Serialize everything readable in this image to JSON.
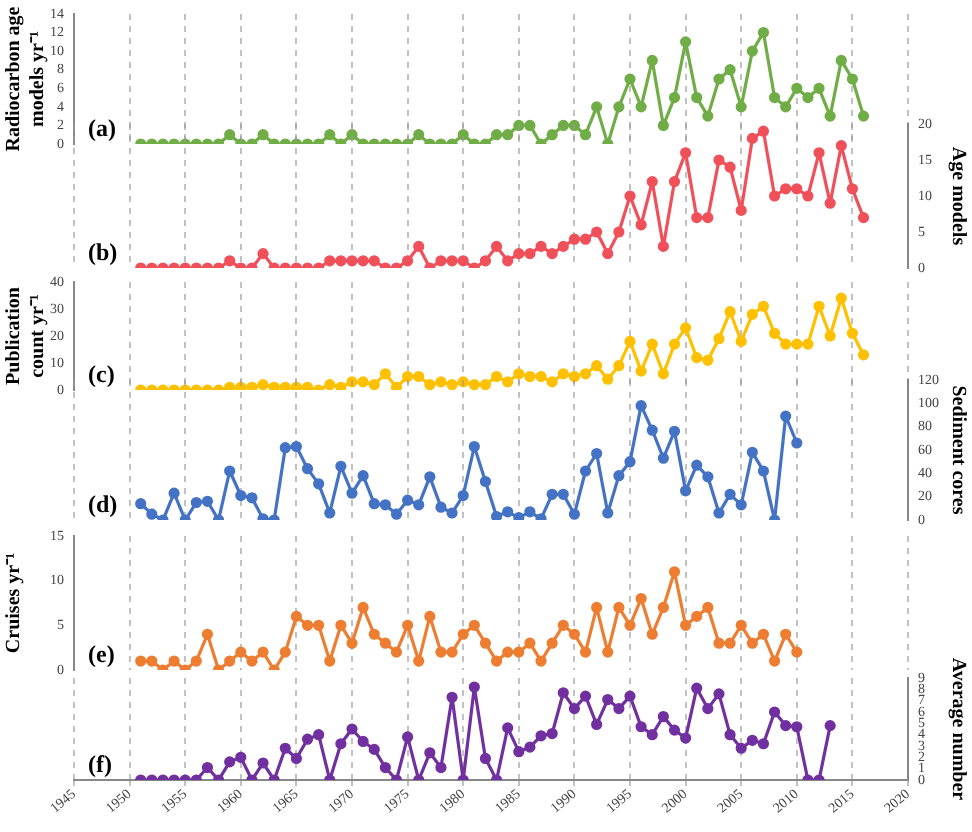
{
  "chart_data": [
    {
      "type": "line",
      "ylabel": "Radiocarbon age models yr⁻¹",
      "annotations": [
        "(a)"
      ],
      "grid": "x",
      "marker": "circle",
      "tick_labels": "y",
      "xlim": [
        1945,
        2020
      ],
      "xticks": [
        1945,
        1950,
        1955,
        1960,
        1965,
        1970,
        1975,
        1980,
        1985,
        1990,
        1995,
        2000,
        2005,
        2010,
        2015,
        2020
      ],
      "ylim": [
        0,
        14
      ],
      "yticks": [
        0,
        2,
        4,
        6,
        8,
        10,
        12,
        14
      ],
      "x": [
        1951,
        1952,
        1953,
        1954,
        1955,
        1956,
        1957,
        1958,
        1959,
        1960,
        1961,
        1962,
        1963,
        1964,
        1965,
        1966,
        1967,
        1968,
        1969,
        1970,
        1971,
        1972,
        1973,
        1974,
        1975,
        1976,
        1977,
        1978,
        1979,
        1980,
        1981,
        1982,
        1983,
        1984,
        1985,
        1986,
        1987,
        1988,
        1989,
        1990,
        1991,
        1992,
        1993,
        1994,
        1995,
        1996,
        1997,
        1998,
        1999,
        2000,
        2001,
        2002,
        2003,
        2004,
        2005,
        2006,
        2007,
        2008,
        2009,
        2010,
        2011,
        2012,
        2013,
        2014,
        2015,
        2016
      ],
      "series": [
        {
          "color": "#70ad47",
          "values": [
            0,
            0,
            0,
            0,
            0,
            0,
            0,
            0,
            1,
            0,
            0,
            1,
            0,
            0,
            0,
            0,
            0,
            1,
            0,
            1,
            0,
            0,
            0,
            0,
            0,
            1,
            0,
            0,
            0,
            1,
            0,
            0,
            1,
            1,
            2,
            2,
            0,
            1,
            2,
            2,
            1,
            4,
            0,
            4,
            7,
            4,
            9,
            2,
            5,
            11,
            5,
            3,
            7,
            8,
            4,
            10,
            12,
            5,
            4,
            6,
            5,
            6,
            3,
            9,
            7,
            3
          ]
        }
      ]
    },
    {
      "type": "line",
      "y2label": "Age models",
      "annotations": [
        "(b)"
      ],
      "grid": "x",
      "marker": "circle",
      "tick_labels": "y",
      "xlim": [
        1945,
        2020
      ],
      "xticks": [
        1945,
        1950,
        1955,
        1960,
        1965,
        1970,
        1975,
        1980,
        1985,
        1990,
        1995,
        2000,
        2005,
        2010,
        2015,
        2020
      ],
      "y2lim": [
        0,
        20
      ],
      "y2ticks": [
        0,
        5,
        10,
        15,
        20
      ],
      "x": [
        1951,
        1952,
        1953,
        1954,
        1955,
        1956,
        1957,
        1958,
        1959,
        1960,
        1961,
        1962,
        1963,
        1964,
        1965,
        1966,
        1967,
        1968,
        1969,
        1970,
        1971,
        1972,
        1973,
        1974,
        1975,
        1976,
        1977,
        1978,
        1979,
        1980,
        1981,
        1982,
        1983,
        1984,
        1985,
        1986,
        1987,
        1988,
        1989,
        1990,
        1991,
        1992,
        1993,
        1994,
        1995,
        1996,
        1997,
        1998,
        1999,
        2000,
        2001,
        2002,
        2003,
        2004,
        2005,
        2006,
        2007,
        2008,
        2009,
        2010,
        2011,
        2012,
        2013,
        2014,
        2015,
        2016
      ],
      "series": [
        {
          "color": "#f0505a",
          "axis": "y2",
          "values": [
            0,
            0,
            0,
            0,
            0,
            0,
            0,
            0,
            1,
            0,
            0,
            2,
            0,
            0,
            0,
            0,
            0,
            1,
            1,
            1,
            1,
            1,
            0,
            0,
            1,
            3,
            0,
            1,
            1,
            1,
            0,
            1,
            3,
            1,
            2,
            2,
            3,
            2,
            3,
            4,
            4,
            5,
            2,
            5,
            10,
            6,
            12,
            3,
            12,
            16,
            7,
            7,
            15,
            14,
            8,
            18,
            19,
            10,
            11,
            11,
            10,
            16,
            9,
            17,
            11,
            7
          ]
        }
      ]
    },
    {
      "type": "line",
      "ylabel": "Publication count yr⁻¹",
      "annotations": [
        "(c)"
      ],
      "grid": "x",
      "marker": "circle",
      "tick_labels": "y",
      "xlim": [
        1945,
        2020
      ],
      "xticks": [
        1945,
        1950,
        1955,
        1960,
        1965,
        1970,
        1975,
        1980,
        1985,
        1990,
        1995,
        2000,
        2005,
        2010,
        2015,
        2020
      ],
      "ylim": [
        0,
        40
      ],
      "yticks": [
        0,
        10,
        20,
        30,
        40
      ],
      "x": [
        1951,
        1952,
        1953,
        1954,
        1955,
        1956,
        1957,
        1958,
        1959,
        1960,
        1961,
        1962,
        1963,
        1964,
        1965,
        1966,
        1967,
        1968,
        1969,
        1970,
        1971,
        1972,
        1973,
        1974,
        1975,
        1976,
        1977,
        1978,
        1979,
        1980,
        1981,
        1982,
        1983,
        1984,
        1985,
        1986,
        1987,
        1988,
        1989,
        1990,
        1991,
        1992,
        1993,
        1994,
        1995,
        1996,
        1997,
        1998,
        1999,
        2000,
        2001,
        2002,
        2003,
        2004,
        2005,
        2006,
        2007,
        2008,
        2009,
        2010,
        2011,
        2012,
        2013,
        2014,
        2015,
        2016
      ],
      "series": [
        {
          "color": "#ffc000",
          "values": [
            0,
            0,
            0,
            0,
            0,
            0,
            0,
            0,
            1,
            1,
            1,
            2,
            1,
            1,
            1,
            1,
            0,
            2,
            1,
            3,
            3,
            2,
            6,
            1,
            5,
            5,
            2,
            3,
            2,
            3,
            2,
            2,
            5,
            3,
            6,
            5,
            5,
            3,
            6,
            5,
            6,
            9,
            4,
            9,
            18,
            7,
            17,
            6,
            17,
            23,
            12,
            11,
            19,
            29,
            18,
            28,
            31,
            21,
            17,
            17,
            17,
            31,
            20,
            34,
            21,
            13
          ]
        }
      ]
    },
    {
      "type": "line",
      "y2label": "Sediment cores",
      "annotations": [
        "(d)"
      ],
      "grid": "x",
      "marker": "circle",
      "tick_labels": "y",
      "xlim": [
        1945,
        2020
      ],
      "xticks": [
        1945,
        1950,
        1955,
        1960,
        1965,
        1970,
        1975,
        1980,
        1985,
        1990,
        1995,
        2000,
        2005,
        2010,
        2015,
        2020
      ],
      "y2lim": [
        0,
        120
      ],
      "y2ticks": [
        0,
        20,
        40,
        60,
        80,
        100,
        120
      ],
      "x": [
        1951,
        1952,
        1953,
        1954,
        1955,
        1956,
        1957,
        1958,
        1959,
        1960,
        1961,
        1962,
        1963,
        1964,
        1965,
        1966,
        1967,
        1968,
        1969,
        1970,
        1971,
        1972,
        1973,
        1974,
        1975,
        1976,
        1977,
        1978,
        1979,
        1980,
        1981,
        1982,
        1983,
        1984,
        1985,
        1986,
        1987,
        1988,
        1989,
        1990,
        1991,
        1992,
        1993,
        1994,
        1995,
        1996,
        1997,
        1998,
        1999,
        2000,
        2001,
        2002,
        2003,
        2004,
        2005,
        2006,
        2007,
        2008,
        2009,
        2010
      ],
      "series": [
        {
          "color": "#4472c4",
          "axis": "y2",
          "values": [
            14,
            5,
            0,
            23,
            0,
            15,
            16,
            0,
            42,
            21,
            19,
            1,
            0,
            62,
            63,
            44,
            31,
            6,
            46,
            23,
            38,
            14,
            13,
            5,
            17,
            13,
            37,
            11,
            6,
            21,
            63,
            33,
            3,
            7,
            2,
            7,
            1,
            22,
            22,
            5,
            42,
            57,
            6,
            38,
            50,
            98,
            77,
            53,
            76,
            25,
            47,
            37,
            6,
            22,
            13,
            58,
            42,
            0,
            89,
            66
          ]
        }
      ]
    },
    {
      "type": "line",
      "ylabel": "Cruises yr⁻¹",
      "annotations": [
        "(e)"
      ],
      "grid": "x",
      "marker": "circle",
      "tick_labels": "y",
      "xlim": [
        1945,
        2020
      ],
      "xticks": [
        1945,
        1950,
        1955,
        1960,
        1965,
        1970,
        1975,
        1980,
        1985,
        1990,
        1995,
        2000,
        2005,
        2010,
        2015,
        2020
      ],
      "ylim": [
        0,
        15
      ],
      "yticks": [
        0,
        5,
        10,
        15
      ],
      "x": [
        1951,
        1952,
        1953,
        1954,
        1955,
        1956,
        1957,
        1958,
        1959,
        1960,
        1961,
        1962,
        1963,
        1964,
        1965,
        1966,
        1967,
        1968,
        1969,
        1970,
        1971,
        1972,
        1973,
        1974,
        1975,
        1976,
        1977,
        1978,
        1979,
        1980,
        1981,
        1982,
        1983,
        1984,
        1985,
        1986,
        1987,
        1988,
        1989,
        1990,
        1991,
        1992,
        1993,
        1994,
        1995,
        1996,
        1997,
        1998,
        1999,
        2000,
        2001,
        2002,
        2003,
        2004,
        2005,
        2006,
        2007,
        2008,
        2009,
        2010
      ],
      "series": [
        {
          "color": "#ed7d31",
          "values": [
            1,
            1,
            0,
            1,
            0,
            1,
            4,
            0,
            1,
            2,
            1,
            2,
            0,
            2,
            6,
            5,
            5,
            1,
            5,
            3,
            7,
            4,
            3,
            2,
            5,
            1,
            6,
            2,
            2,
            4,
            5,
            3,
            1,
            2,
            2,
            3,
            1,
            3,
            5,
            4,
            2,
            7,
            2,
            7,
            5,
            8,
            4,
            7,
            11,
            5,
            6,
            7,
            3,
            3,
            5,
            3,
            4,
            1,
            4,
            2
          ]
        }
      ]
    },
    {
      "type": "line",
      "y2label": "Average number",
      "annotations": [
        "(f)"
      ],
      "grid": "x",
      "marker": "circle",
      "xlim": [
        1945,
        2020
      ],
      "xticks": [
        1945,
        1950,
        1955,
        1960,
        1965,
        1970,
        1975,
        1980,
        1985,
        1990,
        1995,
        2000,
        2005,
        2010,
        2015,
        2020
      ],
      "y2lim": [
        0,
        9
      ],
      "y2ticks": [
        0,
        1,
        2,
        3,
        4,
        5,
        6,
        7,
        8,
        9
      ],
      "x": [
        1951,
        1952,
        1953,
        1954,
        1955,
        1956,
        1957,
        1958,
        1959,
        1960,
        1961,
        1962,
        1963,
        1964,
        1965,
        1966,
        1967,
        1968,
        1969,
        1970,
        1971,
        1972,
        1973,
        1974,
        1975,
        1976,
        1977,
        1978,
        1979,
        1980,
        1981,
        1982,
        1983,
        1984,
        1985,
        1986,
        1987,
        1988,
        1989,
        1990,
        1991,
        1992,
        1993,
        1994,
        1995,
        1996,
        1997,
        1998,
        1999,
        2000,
        2001,
        2002,
        2003,
        2004,
        2005,
        2006,
        2007,
        2008,
        2009,
        2010,
        2011,
        2012,
        2013
      ],
      "series": [
        {
          "color": "#7030a0",
          "axis": "y2",
          "values": [
            0,
            0,
            0,
            0,
            0,
            0,
            1.1,
            0,
            1.6,
            2,
            0,
            1.5,
            0,
            2.8,
            1.9,
            3.6,
            4,
            0,
            3.2,
            4.5,
            3.4,
            2.7,
            1.1,
            0,
            3.8,
            0,
            2.4,
            1.1,
            7.3,
            0,
            8.2,
            1.9,
            0,
            4.6,
            2.5,
            2.9,
            3.9,
            4.1,
            7.7,
            6.3,
            7.4,
            4.9,
            7.1,
            6.3,
            7.4,
            4.7,
            4,
            5.6,
            4.4,
            3.7,
            8.1,
            6.3,
            7.6,
            4,
            2.8,
            3.5,
            3.2,
            6,
            4.8,
            4.7,
            0,
            0,
            4.8
          ]
        }
      ]
    }
  ]
}
